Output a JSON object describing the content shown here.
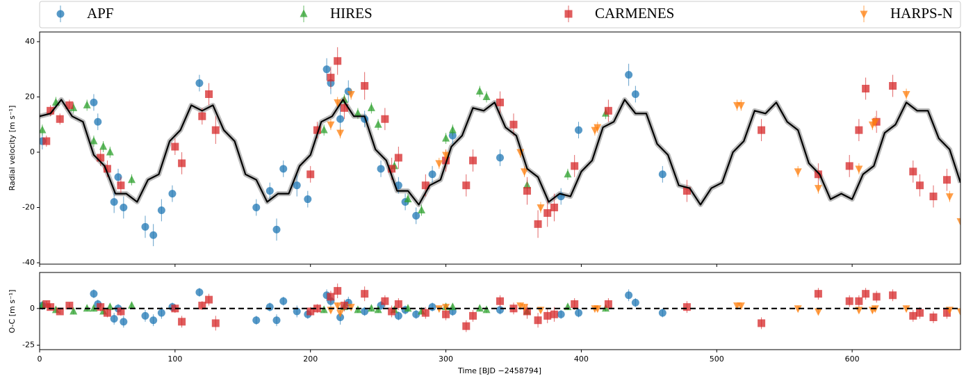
{
  "chart_data": [
    {
      "type": "scatter",
      "ylabel": "Radial velocity [m s⁻¹]",
      "xlim": [
        0,
        680
      ],
      "ylim": [
        -40.5,
        43.5
      ],
      "yticks": [
        -40,
        -20,
        0,
        20,
        40
      ],
      "model": {
        "color": "#000000",
        "band_color": "#bbbbbb",
        "x": [
          0,
          8,
          16,
          24,
          32,
          40,
          48,
          56,
          64,
          72,
          80,
          88,
          96,
          104,
          112,
          120,
          128,
          136,
          144,
          152,
          160,
          168,
          176,
          184,
          192,
          200,
          208,
          216,
          224,
          232,
          240,
          248,
          256,
          264,
          272,
          280,
          288,
          296,
          304,
          312,
          320,
          328,
          336,
          344,
          352,
          360,
          368,
          376,
          384,
          392,
          400,
          408,
          416,
          424,
          432,
          440,
          448,
          456,
          464,
          472,
          480,
          488,
          496,
          504,
          512,
          520,
          528,
          536,
          544,
          552,
          560,
          568,
          576,
          584,
          592,
          600,
          608,
          616,
          624,
          632,
          640,
          648,
          656,
          664,
          672,
          680
        ],
        "values": [
          13,
          14,
          19,
          13,
          11,
          -1,
          -5,
          -15,
          -15,
          -18,
          -10,
          -8,
          4,
          8,
          17,
          15,
          17,
          8,
          4,
          -8,
          -10,
          -18,
          -15,
          -15,
          -5,
          -1,
          11,
          13,
          19,
          13,
          13,
          1,
          -3,
          -14,
          -14,
          -19,
          -12,
          -10,
          2,
          6,
          16,
          15,
          18,
          9,
          6,
          -6,
          -9,
          -18,
          -15,
          -16,
          -7,
          -3,
          9,
          11,
          19,
          14,
          14,
          3,
          -1,
          -12,
          -13,
          -19,
          -13,
          -11,
          0,
          4,
          15,
          14,
          18,
          11,
          8,
          -4,
          -8,
          -17,
          -15,
          -17,
          -8,
          -5,
          7,
          10,
          18,
          15,
          15,
          5,
          1,
          -11
        ]
      },
      "series": [
        {
          "name": "APF",
          "color": "#1f77b4",
          "marker": "circle",
          "x": [
            2,
            40,
            43,
            55,
            58,
            62,
            78,
            84,
            90,
            98,
            118,
            160,
            170,
            175,
            180,
            190,
            198,
            212,
            215,
            222,
            228,
            240,
            252,
            265,
            270,
            278,
            290,
            305,
            340,
            385,
            398,
            435,
            440,
            460
          ],
          "values": [
            4,
            18,
            11,
            -18,
            -9,
            -20,
            -27,
            -30,
            -21,
            -15,
            25,
            -20,
            -14,
            -28,
            -6,
            -12,
            -17,
            30,
            25,
            12,
            22,
            12,
            -6,
            -12,
            -18,
            -23,
            -8,
            6,
            -2,
            -16,
            8,
            28,
            21,
            -8
          ],
          "errors": [
            3,
            3,
            3,
            4,
            3,
            4,
            4,
            4,
            4,
            3,
            3,
            3,
            3,
            4,
            3,
            4,
            3,
            4,
            4,
            5,
            4,
            3,
            3,
            3,
            3,
            3,
            3,
            3,
            3,
            3,
            3,
            4,
            3,
            3
          ],
          "residuals": [
            2,
            10,
            3,
            -7,
            0,
            -9,
            -5,
            -8,
            -3,
            1,
            11,
            -8,
            1,
            -8,
            5,
            -2,
            -4,
            9,
            5,
            -6,
            4,
            -2,
            2,
            -5,
            -1,
            -4,
            1,
            -2,
            -1,
            -4,
            -3,
            9,
            4,
            -3
          ]
        },
        {
          "name": "HIRES",
          "color": "#2ca02c",
          "marker": "triangle-up",
          "x": [
            2,
            12,
            25,
            35,
            40,
            47,
            52,
            68,
            210,
            225,
            235,
            245,
            250,
            262,
            272,
            282,
            300,
            305,
            325,
            330,
            360,
            390,
            418
          ],
          "values": [
            8,
            18,
            16,
            17,
            4,
            2,
            0,
            -10,
            8,
            19,
            14,
            16,
            10,
            -5,
            -17,
            -21,
            5,
            8,
            22,
            20,
            -12,
            -8,
            14
          ],
          "errors": [
            2,
            2,
            2,
            2,
            2,
            2,
            2,
            2,
            2,
            2,
            2,
            2,
            2,
            2,
            2,
            2,
            2,
            2,
            2,
            2,
            2,
            2,
            2
          ],
          "residuals": [
            2,
            -1,
            -2,
            0,
            0,
            -2,
            1,
            2,
            -1,
            1,
            -1,
            0,
            -1,
            -1,
            0,
            -2,
            1,
            1,
            0,
            -1,
            -2,
            1,
            0
          ]
        },
        {
          "name": "CARMENES",
          "color": "#d62728",
          "marker": "square",
          "x": [
            5,
            8,
            15,
            22,
            45,
            50,
            60,
            100,
            105,
            120,
            125,
            130,
            200,
            205,
            215,
            220,
            225,
            240,
            255,
            260,
            265,
            285,
            300,
            315,
            320,
            340,
            350,
            360,
            368,
            375,
            380,
            395,
            420,
            478,
            533,
            575,
            598,
            605,
            610,
            618,
            630,
            645,
            650,
            660,
            670
          ],
          "values": [
            4,
            15,
            12,
            17,
            -2,
            -6,
            -12,
            2,
            -4,
            13,
            21,
            8,
            -8,
            8,
            27,
            33,
            16,
            24,
            12,
            -6,
            -2,
            -12,
            -3,
            -12,
            -3,
            18,
            10,
            -14,
            -26,
            -22,
            -20,
            -5,
            15,
            -14,
            8,
            -8,
            -5,
            8,
            23,
            11,
            24,
            -7,
            -12,
            -16,
            -10
          ],
          "errors": [
            2,
            2,
            2,
            2,
            3,
            3,
            3,
            3,
            4,
            3,
            4,
            5,
            3,
            3,
            4,
            5,
            4,
            5,
            4,
            4,
            4,
            4,
            4,
            4,
            4,
            4,
            4,
            5,
            5,
            5,
            5,
            4,
            4,
            4,
            4,
            4,
            4,
            4,
            4,
            4,
            4,
            4,
            4,
            4,
            4
          ],
          "residuals": [
            3,
            1,
            -2,
            2,
            1,
            -3,
            -2,
            0,
            -9,
            2,
            6,
            -10,
            -2,
            0,
            8,
            12,
            2,
            10,
            5,
            -2,
            3,
            -3,
            -4,
            -12,
            -5,
            5,
            0,
            -2,
            -8,
            -5,
            -4,
            3,
            3,
            1,
            -10,
            10,
            5,
            5,
            10,
            8,
            9,
            -5,
            -3,
            -6,
            -3
          ]
        },
        {
          "name": "HARPS-N",
          "color": "#ff7f0e",
          "marker": "triangle-down",
          "x": [
            215,
            220,
            222,
            230,
            295,
            300,
            355,
            358,
            370,
            410,
            412,
            515,
            518,
            560,
            575,
            605,
            615,
            617,
            640,
            672,
            680
          ],
          "values": [
            10,
            18,
            7,
            21,
            -4,
            -1,
            0,
            -7,
            -20,
            8,
            9,
            17,
            17,
            -7,
            -13,
            -6,
            10,
            11,
            21,
            -16,
            -25
          ],
          "errors": [
            2,
            2,
            2,
            2,
            2,
            2,
            2,
            2,
            2,
            2,
            2,
            2,
            2,
            2,
            2,
            2,
            2,
            2,
            2,
            2,
            2
          ],
          "residuals": [
            -1,
            2,
            -3,
            1,
            0,
            1,
            2,
            1,
            -1,
            0,
            0,
            2,
            2,
            0,
            -2,
            -1,
            -1,
            0,
            0,
            -1,
            -2
          ]
        }
      ]
    },
    {
      "type": "residual",
      "ylabel": "O-C [m s⁻¹]",
      "xlabel": "Time [BJD −2458794]",
      "xlim": [
        0,
        680
      ],
      "ylim": [
        -28,
        24.5
      ],
      "yticks": [
        -25,
        0
      ],
      "xticks": [
        0,
        100,
        200,
        300,
        400,
        500,
        600
      ],
      "zero_line": 0
    }
  ]
}
